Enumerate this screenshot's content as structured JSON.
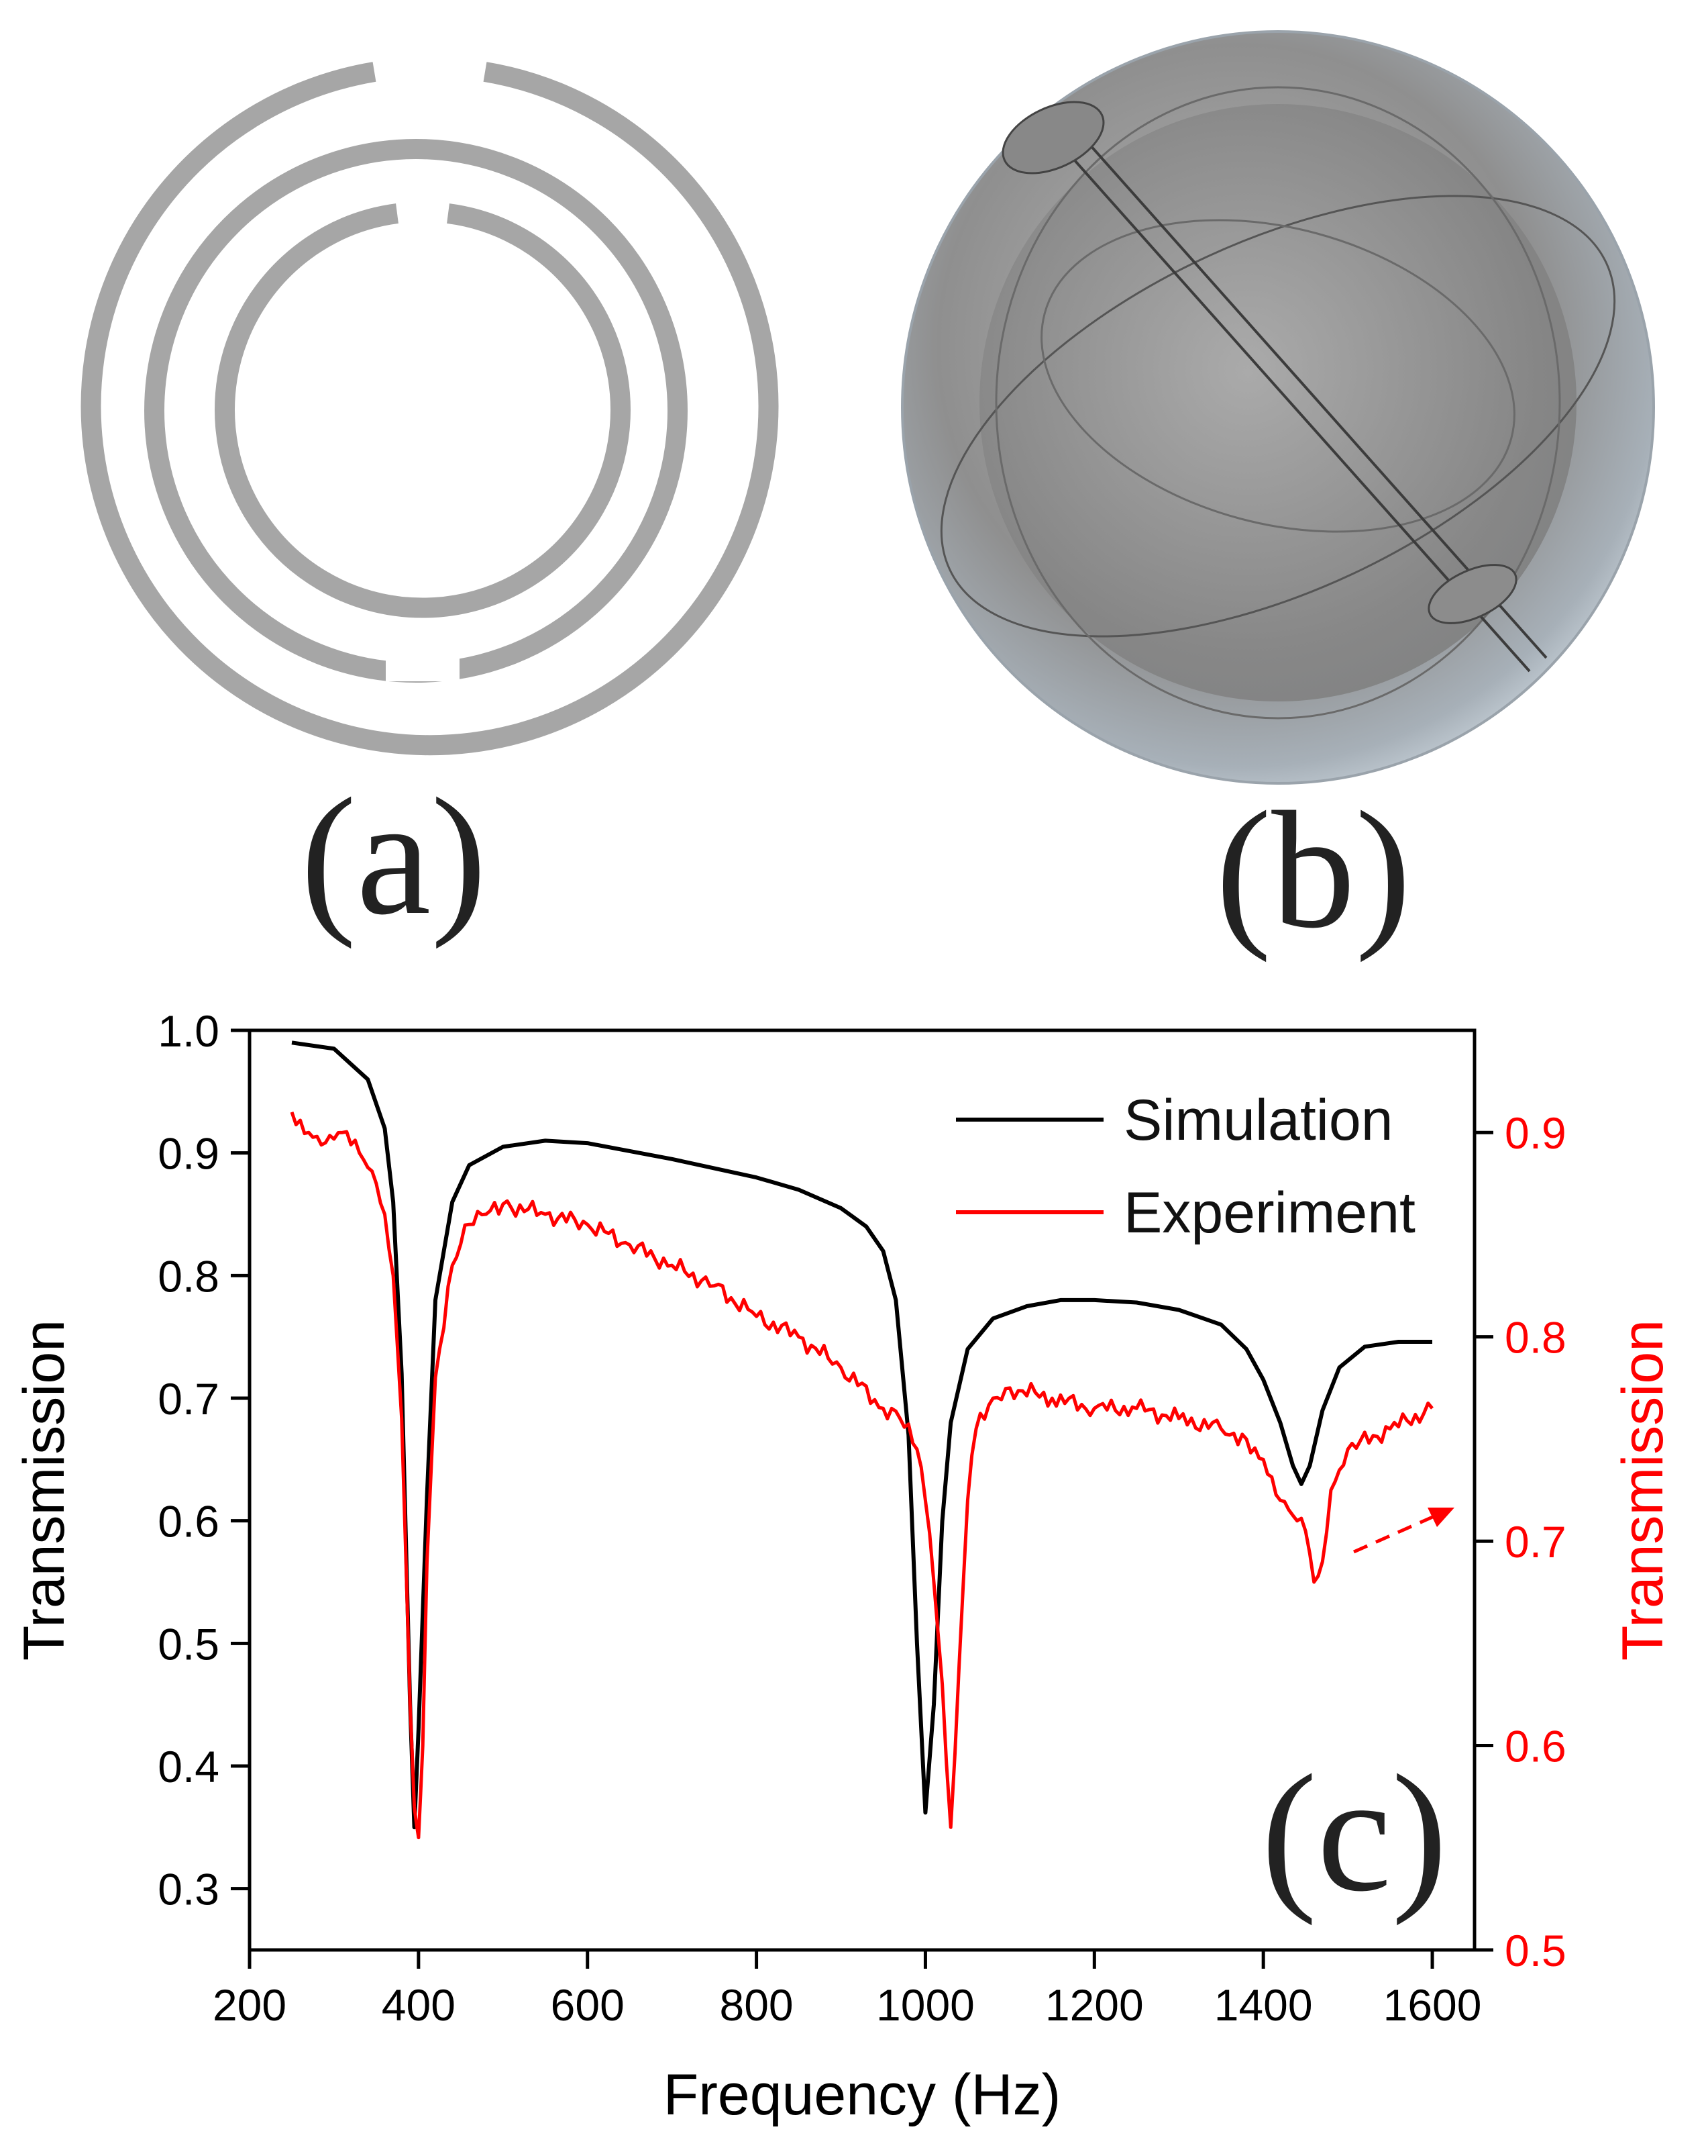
{
  "panels": {
    "a": {
      "label": "(a)"
    },
    "b": {
      "label": "(b)"
    },
    "c": {
      "label": "(c)"
    }
  },
  "colors": {
    "simulation": "#000000",
    "experiment": "#ff0000",
    "ring": "#a6a6a6",
    "axis": "#000000"
  },
  "chart_data": {
    "type": "line",
    "title": "",
    "xlabel": "Frequency (Hz)",
    "ylabel": "Transmission",
    "ylabel_right": "Transmission",
    "xlim": [
      200,
      1650
    ],
    "ylim": [
      0.25,
      1.0
    ],
    "ylim_right": [
      0.5,
      0.95
    ],
    "x_ticks": [
      200,
      400,
      600,
      800,
      1000,
      1200,
      1400,
      1600
    ],
    "y_ticks": [
      0.3,
      0.4,
      0.5,
      0.6,
      0.7,
      0.8,
      0.9,
      1.0
    ],
    "y_ticks_right": [
      0.5,
      0.6,
      0.7,
      0.8,
      0.9
    ],
    "x_tick_labels": [
      "200",
      "400",
      "600",
      "800",
      "1000",
      "1200",
      "1400",
      "1600"
    ],
    "y_tick_labels": [
      "0.3",
      "0.4",
      "0.5",
      "0.6",
      "0.7",
      "0.8",
      "0.9",
      "1.0"
    ],
    "y_tick_labels_right": [
      "0.5",
      "0.6",
      "0.7",
      "0.8",
      "0.9"
    ],
    "legend_position": "top-right",
    "series": [
      {
        "name": "Simulation",
        "axis": "left",
        "x": [
          250,
          300,
          340,
          360,
          370,
          380,
          390,
          395,
          400,
          410,
          420,
          440,
          460,
          500,
          550,
          600,
          700,
          800,
          850,
          900,
          930,
          950,
          965,
          980,
          990,
          1000,
          1010,
          1020,
          1030,
          1050,
          1080,
          1120,
          1160,
          1200,
          1250,
          1300,
          1350,
          1380,
          1400,
          1420,
          1435,
          1445,
          1455,
          1470,
          1490,
          1520,
          1560,
          1600
        ],
        "y": [
          0.99,
          0.985,
          0.96,
          0.92,
          0.86,
          0.72,
          0.45,
          0.35,
          0.43,
          0.62,
          0.78,
          0.86,
          0.89,
          0.905,
          0.91,
          0.908,
          0.895,
          0.88,
          0.87,
          0.855,
          0.84,
          0.82,
          0.78,
          0.67,
          0.5,
          0.362,
          0.45,
          0.6,
          0.68,
          0.74,
          0.765,
          0.775,
          0.78,
          0.78,
          0.778,
          0.772,
          0.76,
          0.74,
          0.715,
          0.68,
          0.645,
          0.63,
          0.645,
          0.69,
          0.725,
          0.742,
          0.746,
          0.746
        ]
      },
      {
        "name": "Experiment",
        "axis": "right",
        "x": [
          250,
          270,
          290,
          310,
          330,
          350,
          360,
          370,
          380,
          390,
          395,
          400,
          405,
          410,
          420,
          440,
          460,
          480,
          500,
          550,
          600,
          650,
          700,
          750,
          800,
          850,
          900,
          950,
          970,
          990,
          1000,
          1010,
          1020,
          1030,
          1040,
          1050,
          1060,
          1080,
          1100,
          1150,
          1200,
          1250,
          1300,
          1350,
          1380,
          1400,
          1420,
          1440,
          1450,
          1460,
          1470,
          1480,
          1500,
          1550,
          1600
        ],
        "y": [
          0.91,
          0.9,
          0.895,
          0.9,
          0.89,
          0.875,
          0.86,
          0.83,
          0.76,
          0.62,
          0.57,
          0.555,
          0.6,
          0.69,
          0.78,
          0.835,
          0.855,
          0.86,
          0.865,
          0.86,
          0.855,
          0.845,
          0.835,
          0.825,
          0.81,
          0.8,
          0.785,
          0.765,
          0.76,
          0.745,
          0.72,
          0.68,
          0.63,
          0.56,
          0.64,
          0.72,
          0.755,
          0.77,
          0.775,
          0.77,
          0.765,
          0.765,
          0.76,
          0.755,
          0.75,
          0.74,
          0.72,
          0.71,
          0.705,
          0.68,
          0.69,
          0.725,
          0.745,
          0.755,
          0.765
        ]
      }
    ]
  }
}
